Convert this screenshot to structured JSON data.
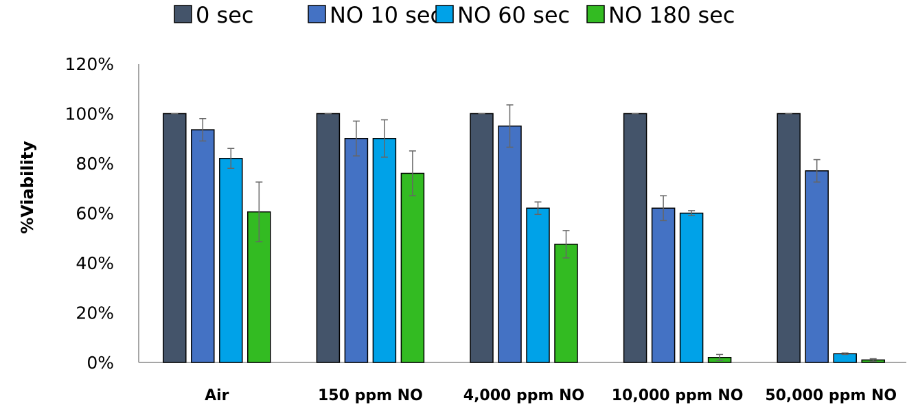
{
  "chart_data": {
    "type": "bar",
    "title": "",
    "xlabel": "",
    "ylabel": "%Viability",
    "ylim": [
      0,
      120
    ],
    "yticks": [
      "0%",
      "20%",
      "40%",
      "60%",
      "80%",
      "100%",
      "120%"
    ],
    "categories": [
      "Air",
      "150 ppm NO",
      "4,000 ppm NO",
      "10,000 ppm NO",
      "50,000 ppm NO"
    ],
    "legend_position": "top",
    "grid": false,
    "series": [
      {
        "name": "0 sec",
        "color": "#44546a",
        "values": [
          100,
          100,
          100,
          100,
          100
        ],
        "errors": [
          0,
          0,
          0,
          0,
          0
        ]
      },
      {
        "name": "NO 10 sec",
        "color": "#4472c4",
        "values": [
          93.5,
          90,
          95,
          62,
          77
        ],
        "errors": [
          4.5,
          7,
          8.5,
          5,
          4.5
        ]
      },
      {
        "name": "NO 60 sec",
        "color": "#00a2e8",
        "values": [
          82,
          90,
          62,
          60,
          3.5
        ],
        "errors": [
          4,
          7.5,
          2.5,
          1,
          0.3
        ]
      },
      {
        "name": "NO 180 sec",
        "color": "#33bb22",
        "values": [
          60.5,
          76,
          47.5,
          2,
          1
        ],
        "errors": [
          12,
          9,
          5.5,
          1.2,
          0.5
        ]
      }
    ]
  }
}
